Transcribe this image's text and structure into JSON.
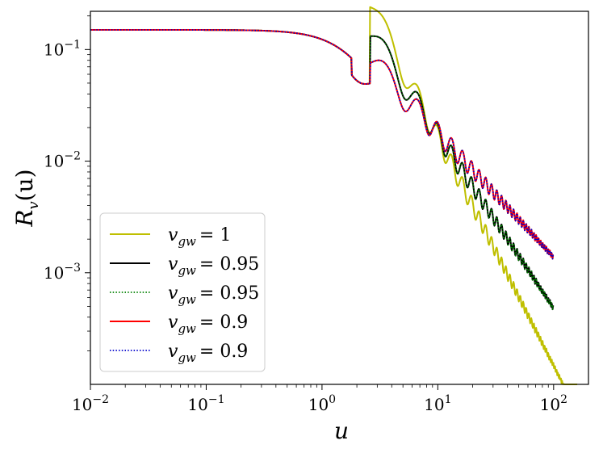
{
  "chart_data": {
    "type": "line",
    "title": "",
    "xlabel": "u",
    "ylabel": "R_v(u)",
    "xscale": "log",
    "yscale": "log",
    "xlim": [
      0.01,
      200
    ],
    "ylim": [
      0.0001,
      0.22
    ],
    "xticks": [
      {
        "value": 0.01,
        "base": "10",
        "exp": "−2"
      },
      {
        "value": 0.1,
        "base": "10",
        "exp": "−1"
      },
      {
        "value": 1,
        "base": "10",
        "exp": "0"
      },
      {
        "value": 10,
        "base": "10",
        "exp": "1"
      },
      {
        "value": 100,
        "base": "10",
        "exp": "2"
      }
    ],
    "yticks": [
      {
        "value": 0.001,
        "base": "10",
        "exp": "−3"
      },
      {
        "value": 0.01,
        "base": "10",
        "exp": "−2"
      },
      {
        "value": 0.1,
        "base": "10",
        "exp": "−1"
      }
    ],
    "grid": false,
    "legend_position": "lower-left",
    "model": {
      "plateau": 0.15,
      "transition_u": 2.0,
      "oscillation_period": 3.2,
      "oscillation_phase": 0.9,
      "decay_exponent_start_u": 2.6
    },
    "series": [
      {
        "name": "v_gw = 1",
        "sub": "gw",
        "value_text": "= 1",
        "color": "#bfbf00",
        "style": "solid",
        "x_max": 160,
        "slope": -2.05,
        "amp_at_10": 0.0165
      },
      {
        "name": "v_gw = 0.95",
        "sub": "gw",
        "value_text": "= 0.95",
        "color": "#000000",
        "style": "solid",
        "x_max": 100,
        "slope": -1.56,
        "amp_at_10": 0.0175
      },
      {
        "name": "v_gw = 0.95",
        "sub": "gw",
        "value_text": "= 0.95",
        "color": "#008000",
        "style": "dotted",
        "x_max": 100,
        "slope": -1.56,
        "amp_at_10": 0.0175
      },
      {
        "name": "v_gw = 0.9",
        "sub": "gw",
        "value_text": "= 0.9",
        "color": "#ff0000",
        "style": "solid",
        "x_max": 100,
        "slope": -1.12,
        "amp_at_10": 0.0182
      },
      {
        "name": "v_gw = 0.9",
        "sub": "gw",
        "value_text": "= 0.9",
        "color": "#0000cc",
        "style": "dotted",
        "x_max": 100,
        "slope": -1.12,
        "amp_at_10": 0.0182
      }
    ]
  }
}
